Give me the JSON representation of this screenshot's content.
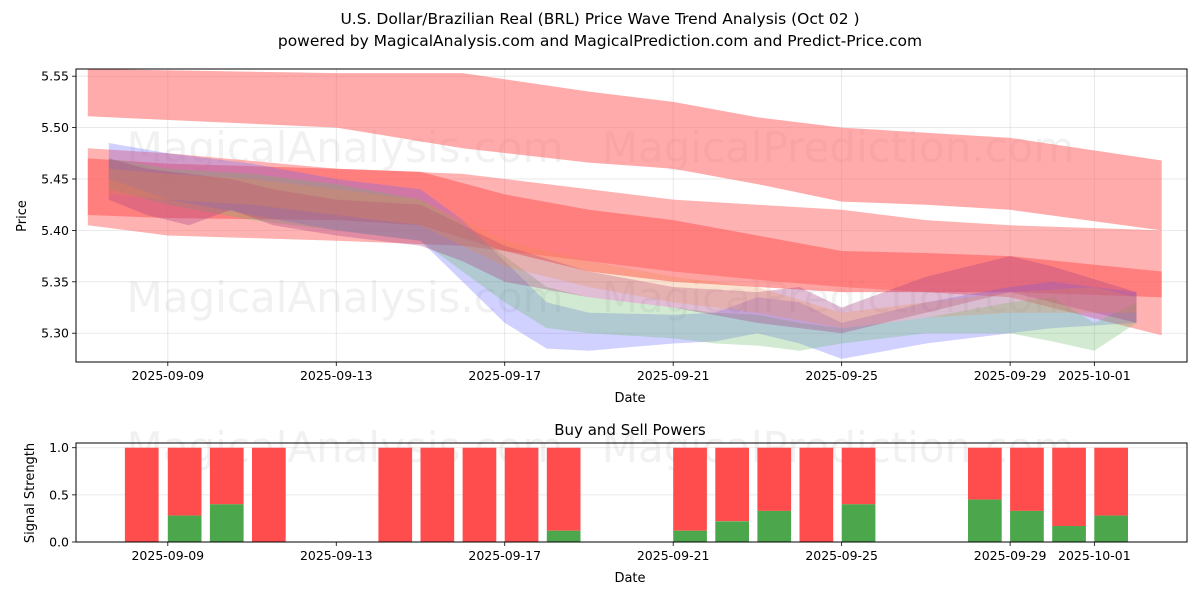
{
  "header": {
    "title": "U.S. Dollar/Brazilian Real (BRL) Price Wave Trend Analysis (Oct 02 )",
    "subtitle": "powered by MagicalAnalysis.com and MagicalPrediction.com and Predict-Price.com"
  },
  "watermarks": [
    "MagicalAnalysis.com",
    "MagicalPrediction.com"
  ],
  "chart_data": [
    {
      "type": "area",
      "title": "U.S. Dollar/Brazilian Real (BRL) Price Wave Trend Analysis (Oct 02 )",
      "xlabel": "Date",
      "ylabel": "Price",
      "x_origin": "2025-09-09",
      "xlim_days": [
        -2.18,
        24.2
      ],
      "ylim": [
        5.272,
        5.557
      ],
      "grid": true,
      "x_ticks": [
        {
          "label": "2025-09-09",
          "day": 0
        },
        {
          "label": "2025-09-13",
          "day": 4
        },
        {
          "label": "2025-09-17",
          "day": 8
        },
        {
          "label": "2025-09-21",
          "day": 12
        },
        {
          "label": "2025-09-25",
          "day": 16
        },
        {
          "label": "2025-09-29",
          "day": 20
        },
        {
          "label": "2025-10-01",
          "day": 22
        }
      ],
      "y_ticks": [
        "5.30",
        "5.35",
        "5.40",
        "5.45",
        "5.50",
        "5.55"
      ],
      "y_tick_values": [
        5.3,
        5.35,
        5.4,
        5.45,
        5.5,
        5.55
      ],
      "bands": [
        {
          "name": "upper-trend-band",
          "color": "#ff6666",
          "opacity": 0.55,
          "days": [
            -1.9,
            4,
            7,
            10,
            12,
            14,
            16,
            18,
            20,
            23.6
          ],
          "upper": [
            5.557,
            5.553,
            5.553,
            5.535,
            5.525,
            5.51,
            5.5,
            5.495,
            5.49,
            5.468
          ],
          "lower": [
            5.511,
            5.5,
            5.48,
            5.466,
            5.46,
            5.445,
            5.428,
            5.425,
            5.42,
            5.4
          ]
        },
        {
          "name": "mid-trend-band",
          "color": "#ff6666",
          "opacity": 0.5,
          "days": [
            -1.9,
            0,
            4,
            7,
            10,
            12,
            14,
            16,
            18,
            20,
            23.6
          ],
          "upper": [
            5.48,
            5.475,
            5.46,
            5.455,
            5.44,
            5.43,
            5.425,
            5.42,
            5.41,
            5.405,
            5.4
          ],
          "lower": [
            5.405,
            5.395,
            5.39,
            5.385,
            5.37,
            5.36,
            5.352,
            5.345,
            5.34,
            5.335,
            5.298
          ]
        },
        {
          "name": "core-trend-band",
          "color": "#ff5555",
          "opacity": 0.55,
          "days": [
            -1.9,
            0,
            4,
            6,
            8,
            10,
            12,
            14,
            16,
            18,
            20,
            23.6
          ],
          "upper": [
            5.47,
            5.465,
            5.46,
            5.457,
            5.435,
            5.42,
            5.41,
            5.395,
            5.38,
            5.378,
            5.375,
            5.36
          ],
          "lower": [
            5.415,
            5.412,
            5.41,
            5.405,
            5.38,
            5.36,
            5.35,
            5.345,
            5.34,
            5.34,
            5.34,
            5.335
          ]
        },
        {
          "name": "wave-band-blue-1",
          "color": "#6666ff",
          "opacity": 0.3,
          "days": [
            -1.4,
            0,
            2,
            4,
            6,
            7,
            8,
            9,
            10,
            12,
            13,
            14,
            15,
            16,
            18,
            20,
            21,
            23
          ],
          "upper": [
            5.485,
            5.475,
            5.465,
            5.45,
            5.44,
            5.41,
            5.37,
            5.33,
            5.32,
            5.318,
            5.32,
            5.335,
            5.33,
            5.31,
            5.33,
            5.345,
            5.35,
            5.34
          ],
          "lower": [
            5.45,
            5.43,
            5.415,
            5.4,
            5.39,
            5.35,
            5.31,
            5.285,
            5.283,
            5.29,
            5.292,
            5.3,
            5.29,
            5.275,
            5.29,
            5.3,
            5.305,
            5.31
          ]
        },
        {
          "name": "wave-band-green",
          "color": "#66bb66",
          "opacity": 0.3,
          "days": [
            -1.4,
            0,
            2,
            4,
            6,
            7,
            8,
            9,
            10,
            12,
            13,
            14,
            15,
            16,
            18,
            20,
            21,
            22,
            23
          ],
          "upper": [
            5.47,
            5.46,
            5.455,
            5.445,
            5.43,
            5.405,
            5.375,
            5.345,
            5.335,
            5.325,
            5.32,
            5.318,
            5.31,
            5.305,
            5.315,
            5.33,
            5.335,
            5.31,
            5.33
          ],
          "lower": [
            5.44,
            5.425,
            5.41,
            5.4,
            5.39,
            5.36,
            5.33,
            5.305,
            5.3,
            5.295,
            5.29,
            5.288,
            5.283,
            5.29,
            5.3,
            5.3,
            5.292,
            5.283,
            5.31
          ]
        },
        {
          "name": "wave-band-purple",
          "color": "#aa4488",
          "opacity": 0.35,
          "days": [
            -1.4,
            -0.5,
            0.5,
            1.5,
            2.5,
            4,
            6,
            7,
            8,
            10,
            12,
            14,
            15,
            16,
            18,
            20,
            21,
            23
          ],
          "upper": [
            5.47,
            5.46,
            5.455,
            5.45,
            5.44,
            5.43,
            5.425,
            5.405,
            5.385,
            5.36,
            5.345,
            5.34,
            5.345,
            5.325,
            5.355,
            5.375,
            5.365,
            5.34
          ],
          "lower": [
            5.43,
            5.415,
            5.405,
            5.42,
            5.405,
            5.395,
            5.385,
            5.37,
            5.35,
            5.335,
            5.325,
            5.31,
            5.305,
            5.3,
            5.32,
            5.34,
            5.33,
            5.31
          ]
        },
        {
          "name": "wave-band-orange",
          "color": "#ee8844",
          "opacity": 0.25,
          "days": [
            -1.4,
            0,
            2,
            4,
            6,
            8,
            10,
            12,
            14,
            16,
            18,
            20,
            22,
            23
          ],
          "upper": [
            5.46,
            5.455,
            5.45,
            5.44,
            5.43,
            5.39,
            5.37,
            5.355,
            5.345,
            5.32,
            5.33,
            5.34,
            5.345,
            5.335
          ],
          "lower": [
            5.435,
            5.43,
            5.425,
            5.415,
            5.405,
            5.365,
            5.345,
            5.33,
            5.32,
            5.305,
            5.315,
            5.32,
            5.32,
            5.32
          ]
        }
      ]
    },
    {
      "type": "bar",
      "title": "Buy and Sell Powers",
      "xlabel": "Date",
      "ylabel": "Signal Strength",
      "x_origin": "2025-09-09",
      "xlim_days": [
        -2.18,
        24.2
      ],
      "ylim": [
        0,
        1.05
      ],
      "grid": true,
      "x_ticks": [
        {
          "label": "2025-09-09",
          "day": 0
        },
        {
          "label": "2025-09-13",
          "day": 4
        },
        {
          "label": "2025-09-17",
          "day": 8
        },
        {
          "label": "2025-09-21",
          "day": 12
        },
        {
          "label": "2025-09-25",
          "day": 16
        },
        {
          "label": "2025-09-29",
          "day": 20
        },
        {
          "label": "2025-10-01",
          "day": 22
        }
      ],
      "y_ticks": [
        "0.0",
        "0.5",
        "1.0"
      ],
      "y_tick_values": [
        0,
        0.5,
        1.0
      ],
      "series": [
        {
          "name": "Buy",
          "color": "#4ca64c"
        },
        {
          "name": "Sell",
          "color": "#ff4c4c"
        }
      ],
      "bar_days": [
        -0.62,
        0.4,
        1.4,
        2.4,
        5.4,
        6.4,
        7.4,
        8.4,
        9.4,
        12.4,
        13.4,
        14.4,
        15.4,
        16.4,
        19.4,
        20.4,
        21.4,
        22.4
      ],
      "buy": [
        0,
        0.28,
        0.4,
        0,
        0,
        0,
        0,
        0,
        0.12,
        0.12,
        0.22,
        0.33,
        0,
        0.4,
        0.45,
        0.33,
        0.17,
        0.28
      ],
      "total": [
        1,
        1,
        1,
        1,
        1,
        1,
        1,
        1,
        1,
        1,
        1,
        1,
        1,
        1,
        1,
        1,
        1,
        1
      ]
    }
  ]
}
